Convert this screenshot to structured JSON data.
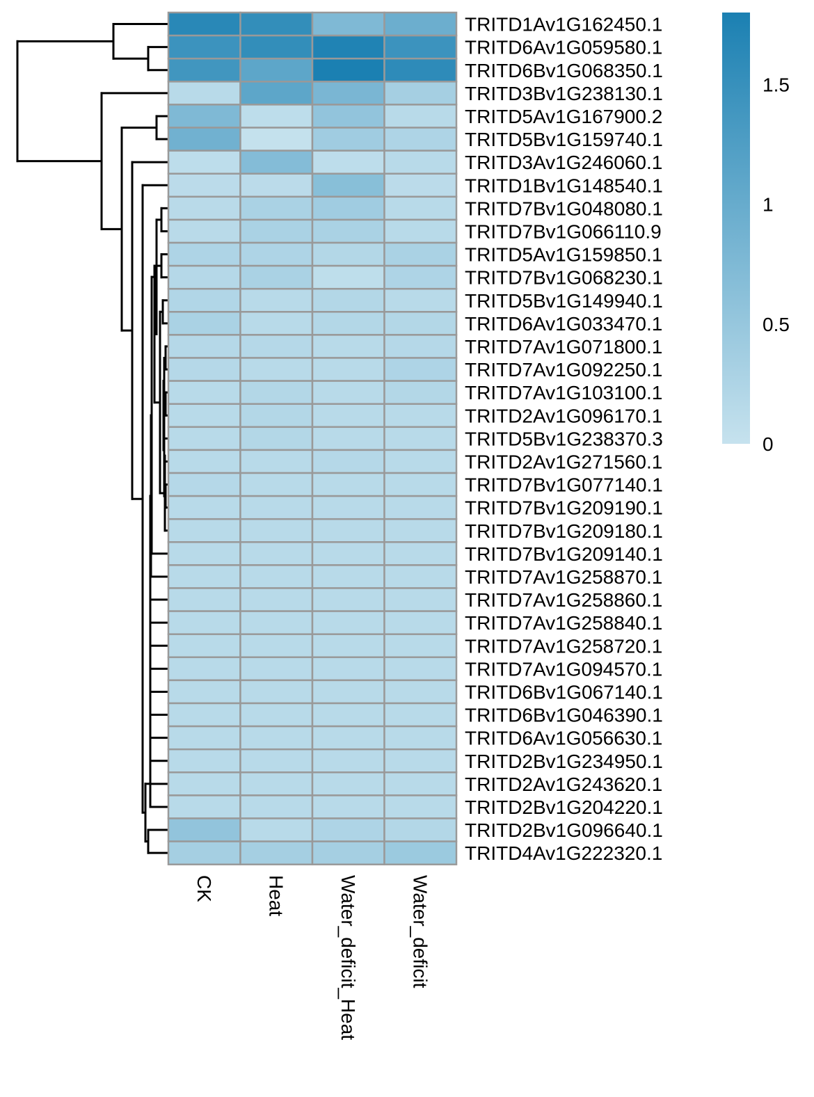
{
  "chart_data": {
    "type": "heatmap",
    "columns": [
      "CK",
      "Heat",
      "Water_deficit_Heat",
      "Water_deficit"
    ],
    "rows": [
      "TRITD1Av1G162450.1",
      "TRITD6Av1G059580.1",
      "TRITD6Bv1G068350.1",
      "TRITD3Bv1G238130.1",
      "TRITD5Av1G167900.2",
      "TRITD5Bv1G159740.1",
      "TRITD3Av1G246060.1",
      "TRITD1Bv1G148540.1",
      "TRITD7Bv1G048080.1",
      "TRITD7Bv1G066110.9",
      "TRITD5Av1G159850.1",
      "TRITD7Bv1G068230.1",
      "TRITD5Bv1G149940.1",
      "TRITD6Av1G033470.1",
      "TRITD7Av1G071800.1",
      "TRITD7Av1G092250.1",
      "TRITD7Av1G103100.1",
      "TRITD2Av1G096170.1",
      "TRITD5Bv1G238370.3",
      "TRITD2Av1G271560.1",
      "TRITD7Bv1G077140.1",
      "TRITD7Bv1G209190.1",
      "TRITD7Bv1G209180.1",
      "TRITD7Bv1G209140.1",
      "TRITD7Av1G258870.1",
      "TRITD7Av1G258860.1",
      "TRITD7Av1G258840.1",
      "TRITD7Av1G258720.1",
      "TRITD7Av1G094570.1",
      "TRITD6Bv1G067140.1",
      "TRITD6Bv1G046390.1",
      "TRITD6Av1G056630.1",
      "TRITD2Bv1G234950.1",
      "TRITD2Av1G243620.1",
      "TRITD2Bv1G204220.1",
      "TRITD2Bv1G096640.1",
      "TRITD4Av1G222320.1"
    ],
    "values": [
      [
        1.65,
        1.55,
        0.75,
        0.95
      ],
      [
        1.45,
        1.55,
        1.75,
        1.45
      ],
      [
        1.4,
        1.1,
        1.8,
        1.6
      ],
      [
        0.15,
        1.1,
        0.8,
        0.35
      ],
      [
        0.75,
        0.1,
        0.55,
        0.15
      ],
      [
        0.9,
        0.02,
        0.4,
        0.25
      ],
      [
        0.1,
        0.7,
        0.1,
        0.15
      ],
      [
        0.12,
        0.12,
        0.65,
        0.12
      ],
      [
        0.14,
        0.3,
        0.4,
        0.15
      ],
      [
        0.14,
        0.3,
        0.3,
        0.15
      ],
      [
        0.25,
        0.25,
        0.2,
        0.3
      ],
      [
        0.18,
        0.3,
        0.08,
        0.25
      ],
      [
        0.22,
        0.15,
        0.2,
        0.15
      ],
      [
        0.3,
        0.15,
        0.2,
        0.2
      ],
      [
        0.18,
        0.18,
        0.15,
        0.18
      ],
      [
        0.18,
        0.15,
        0.15,
        0.25
      ],
      [
        0.15,
        0.2,
        0.15,
        0.2
      ],
      [
        0.15,
        0.2,
        0.15,
        0.15
      ],
      [
        0.15,
        0.2,
        0.15,
        0.15
      ],
      [
        0.15,
        0.15,
        0.18,
        0.15
      ],
      [
        0.18,
        0.15,
        0.15,
        0.15
      ],
      [
        0.15,
        0.15,
        0.15,
        0.15
      ],
      [
        0.15,
        0.15,
        0.15,
        0.15
      ],
      [
        0.15,
        0.15,
        0.15,
        0.15
      ],
      [
        0.15,
        0.15,
        0.15,
        0.15
      ],
      [
        0.15,
        0.15,
        0.15,
        0.15
      ],
      [
        0.15,
        0.15,
        0.15,
        0.15
      ],
      [
        0.15,
        0.15,
        0.15,
        0.15
      ],
      [
        0.15,
        0.15,
        0.15,
        0.15
      ],
      [
        0.15,
        0.15,
        0.15,
        0.15
      ],
      [
        0.15,
        0.15,
        0.15,
        0.15
      ],
      [
        0.15,
        0.15,
        0.15,
        0.15
      ],
      [
        0.15,
        0.15,
        0.15,
        0.15
      ],
      [
        0.15,
        0.15,
        0.15,
        0.15
      ],
      [
        0.15,
        0.15,
        0.15,
        0.15
      ],
      [
        0.55,
        0.15,
        0.25,
        0.2
      ],
      [
        0.35,
        0.35,
        0.35,
        0.45
      ]
    ],
    "color_scale": {
      "min": 0,
      "max": 1.8,
      "low_color": "#c6e2ee",
      "high_color": "#1b80b2",
      "ticks": [
        "0",
        "0.5",
        "1",
        "1.5"
      ]
    },
    "cell_border_color": "#999999",
    "dendrogram": "rows",
    "title": "",
    "xlabel": "",
    "ylabel": ""
  }
}
